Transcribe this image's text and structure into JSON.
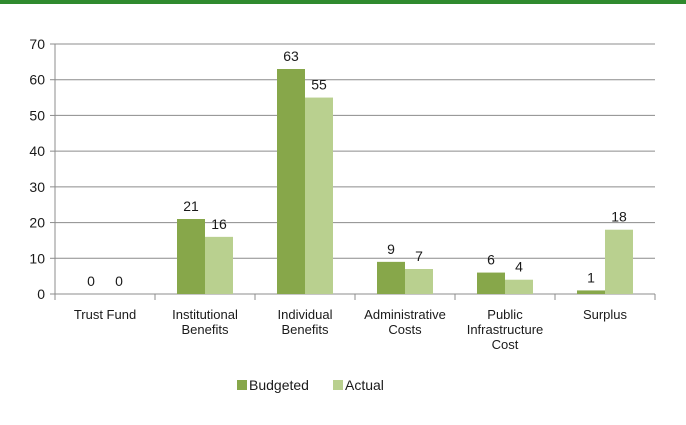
{
  "colors": {
    "top_rule": "#2f8a2e",
    "budgeted": "#87a74a",
    "actual": "#b9d08f",
    "axis": "#8c8c8c",
    "grid": "#8c8c8c"
  },
  "chart_data": {
    "type": "bar",
    "title": "",
    "xlabel": "",
    "ylabel": "",
    "categories": [
      [
        "Trust Fund"
      ],
      [
        "Institutional",
        "Benefits"
      ],
      [
        "Individual",
        "Benefits"
      ],
      [
        "Administrative",
        "Costs"
      ],
      [
        "Public",
        "Infrastructure",
        "Cost"
      ],
      [
        "Surplus"
      ]
    ],
    "series": [
      {
        "name": "Budgeted",
        "values": [
          0,
          21,
          63,
          9,
          6,
          1
        ]
      },
      {
        "name": "Actual",
        "values": [
          0,
          16,
          55,
          7,
          4,
          18
        ]
      }
    ],
    "ylim": [
      0,
      70
    ],
    "yticks": [
      0,
      10,
      20,
      30,
      40,
      50,
      60,
      70
    ],
    "grid": true,
    "data_labels": true,
    "legend_position": "bottom"
  }
}
